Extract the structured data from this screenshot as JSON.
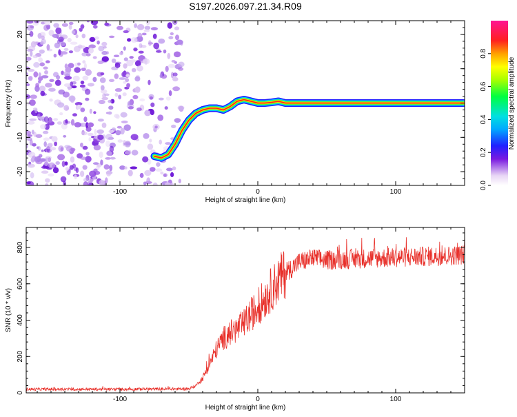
{
  "title": "S197.2026.097.21.34.R09",
  "colors": {
    "trace": "#e8302a",
    "scatter": "#8a2be2",
    "axis": "#000000"
  },
  "colorbar": {
    "label": "Normalized spectral amplitude",
    "range": [
      0,
      1
    ],
    "ticks": [
      0.0,
      0.2,
      0.4,
      0.6,
      0.8
    ],
    "tick_labels": [
      "0.0",
      "0.2",
      "0.4",
      "0.6",
      "0.8"
    ]
  },
  "chart_data": [
    {
      "type": "heatmap",
      "title": "S197.2026.097.21.34.R09",
      "xlabel": "Height of straight line (km)",
      "ylabel": "Frequency (Hz)",
      "xlim": [
        -168,
        150
      ],
      "ylim": [
        -24,
        24
      ],
      "xticks": [
        -100,
        0,
        100
      ],
      "xtick_labels": [
        "-100",
        "0",
        "100"
      ],
      "yticks": [
        -20,
        -10,
        0,
        10,
        20
      ],
      "ytick_labels": [
        "-20",
        "-10",
        "0",
        "10",
        "20"
      ],
      "noise_region_x": [
        -168,
        -55
      ],
      "track": {
        "x": [
          -75,
          -70,
          -65,
          -60,
          -55,
          -50,
          -45,
          -40,
          -35,
          -30,
          -25,
          -20,
          -15,
          -10,
          -5,
          0,
          5,
          10,
          15,
          20,
          30,
          50,
          80,
          110,
          150
        ],
        "y": [
          -15.5,
          -16,
          -15,
          -12,
          -8,
          -5,
          -3,
          -2,
          -1.5,
          -1.5,
          -2,
          -1,
          0.5,
          1,
          0.5,
          0,
          0,
          0.2,
          0.5,
          0,
          0,
          0,
          0,
          0,
          0
        ]
      }
    },
    {
      "type": "line",
      "xlabel": "Height of straight line (km)",
      "ylabel": "SNR (10 * v/v)",
      "xlim": [
        -168,
        150
      ],
      "ylim": [
        0,
        910
      ],
      "xticks": [
        -100,
        0,
        100
      ],
      "xtick_labels": [
        "-100",
        "0",
        "100"
      ],
      "yticks": [
        0,
        200,
        400,
        600,
        800
      ],
      "ytick_labels": [
        "0",
        "200",
        "400",
        "600",
        "800"
      ],
      "series": [
        {
          "name": "SNR",
          "x": [
            -168,
            -100,
            -50,
            -45,
            -40,
            -35,
            -30,
            -25,
            -20,
            -15,
            -10,
            -5,
            0,
            5,
            10,
            15,
            20,
            25,
            30,
            40,
            50,
            60,
            80,
            100,
            120,
            140,
            150
          ],
          "y": [
            20,
            20,
            22,
            40,
            80,
            160,
            240,
            300,
            330,
            350,
            380,
            430,
            470,
            520,
            570,
            620,
            660,
            690,
            720,
            740,
            730,
            735,
            740,
            745,
            750,
            755,
            760
          ]
        }
      ]
    }
  ]
}
